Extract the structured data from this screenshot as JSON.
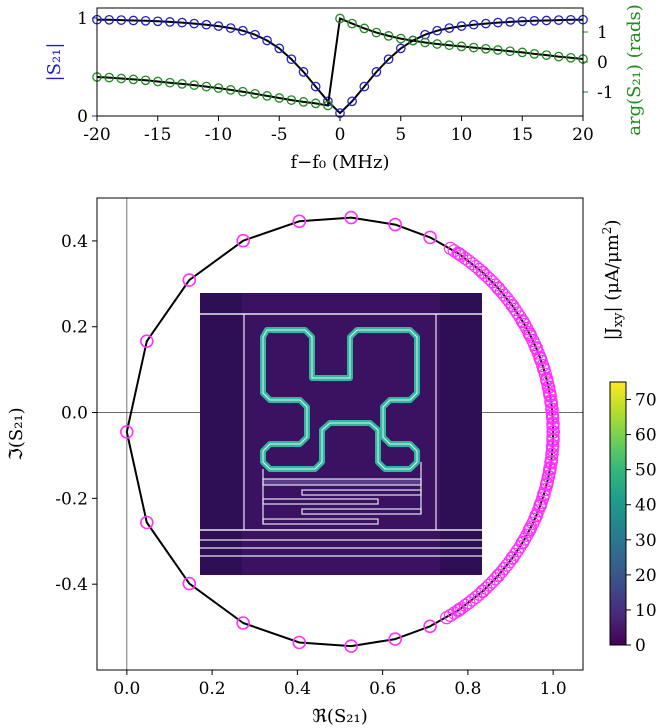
{
  "chart_data": [
    {
      "type": "line",
      "title": "",
      "xlabel": "f−f₀ (MHz)",
      "ylabel_left": "|S₂₁|",
      "ylabel_right": "arg(S₂₁) (rads)",
      "xlim": [
        -20,
        20
      ],
      "ylim_left": [
        0,
        1
      ],
      "ylim_right": [
        -1.5,
        1.5
      ],
      "xticks": [
        "-20",
        "-15",
        "-10",
        "-5",
        "0",
        "5",
        "10",
        "15",
        "20"
      ],
      "yticks_left": [
        "0",
        "1"
      ],
      "yticks_right": [
        "-1",
        "0",
        "1"
      ],
      "colors": {
        "magnitude": "#1f1fcc",
        "phase": "#1e8c1e",
        "fit": "#000000"
      },
      "series": [
        {
          "axis": "left",
          "x": [
            -20,
            -19,
            -18,
            -17,
            -16,
            -15,
            -14,
            -13,
            -12,
            -11,
            -10,
            -9,
            -8,
            -7,
            -6,
            -5,
            -4,
            -3,
            -2,
            -1,
            0,
            1,
            2,
            3,
            4,
            5,
            6,
            7,
            8,
            9,
            10,
            11,
            12,
            13,
            14,
            15,
            16,
            17,
            18,
            19,
            20
          ],
          "values": [
            0.983,
            0.982,
            0.979,
            0.975,
            0.971,
            0.966,
            0.96,
            0.953,
            0.943,
            0.932,
            0.917,
            0.897,
            0.87,
            0.83,
            0.77,
            0.69,
            0.58,
            0.45,
            0.3,
            0.15,
            0.03,
            0.15,
            0.3,
            0.45,
            0.58,
            0.69,
            0.77,
            0.83,
            0.87,
            0.897,
            0.917,
            0.932,
            0.943,
            0.953,
            0.96,
            0.966,
            0.971,
            0.975,
            0.979,
            0.982,
            0.983
          ]
        },
        {
          "axis": "right",
          "x": [
            -20,
            -19,
            -18,
            -17,
            -16,
            -15,
            -14,
            -13,
            -12,
            -11,
            -10,
            -9,
            -8,
            -7,
            -6,
            -5,
            -4,
            -3,
            -2,
            -1,
            0,
            1,
            2,
            3,
            4,
            5,
            6,
            7,
            8,
            9,
            10,
            11,
            12,
            13,
            14,
            15,
            16,
            17,
            18,
            19,
            20
          ],
          "values": [
            -0.5,
            -0.52,
            -0.55,
            -0.58,
            -0.61,
            -0.65,
            -0.69,
            -0.73,
            -0.77,
            -0.82,
            -0.87,
            -0.93,
            -0.99,
            -1.06,
            -1.13,
            -1.2,
            -1.27,
            -1.33,
            -1.38,
            -1.45,
            1.45,
            1.28,
            1.12,
            0.98,
            0.87,
            0.78,
            0.71,
            0.65,
            0.6,
            0.56,
            0.52,
            0.48,
            0.44,
            0.4,
            0.36,
            0.32,
            0.27,
            0.23,
            0.18,
            0.14,
            0.1
          ]
        }
      ]
    },
    {
      "type": "scatter",
      "title": "",
      "xlabel": "ℜ(S₂₁)",
      "ylabel": "ℑ(S₂₁)",
      "xlim": [
        -0.07,
        1.07
      ],
      "ylim": [
        -0.6,
        0.5
      ],
      "xticks": [
        "0.0",
        "0.2",
        "0.4",
        "0.6",
        "0.8",
        "1.0"
      ],
      "yticks": [
        "-0.4",
        "-0.2",
        "0.0",
        "0.2",
        "0.4"
      ],
      "circle_center": [
        0.5,
        -0.045
      ],
      "circle_radius": 0.5,
      "marker_color": "#ff33ff",
      "points_phase_deg": [
        180,
        155,
        135,
        117,
        101,
        87,
        75,
        65,
        56,
        48,
        42,
        36,
        31,
        27,
        23,
        20,
        17,
        14,
        12,
        10,
        8,
        6,
        4,
        2,
        0,
        -2,
        -4,
        -6,
        -8,
        -10,
        -12,
        -14,
        -17,
        -20,
        -23,
        -27,
        -31,
        -36,
        -42,
        -48,
        -56,
        -65,
        -75,
        -87,
        -101,
        -117,
        -135,
        -155
      ]
    }
  ],
  "colorbar": {
    "label": "|J_xy| (μA/μm²)",
    "label_main": "|J",
    "label_sub": "xy",
    "label_rest": "| (μA/μm",
    "label_sup": "2",
    "label_end": ")",
    "ticks": [
      "0",
      "10",
      "20",
      "30",
      "40",
      "50",
      "60",
      "70"
    ],
    "range": [
      0,
      75
    ],
    "colors": [
      "#440154",
      "#482878",
      "#3e4a89",
      "#31688e",
      "#26828e",
      "#1f9e89",
      "#35b779",
      "#6ece58",
      "#b5de2b",
      "#fde725"
    ]
  }
}
